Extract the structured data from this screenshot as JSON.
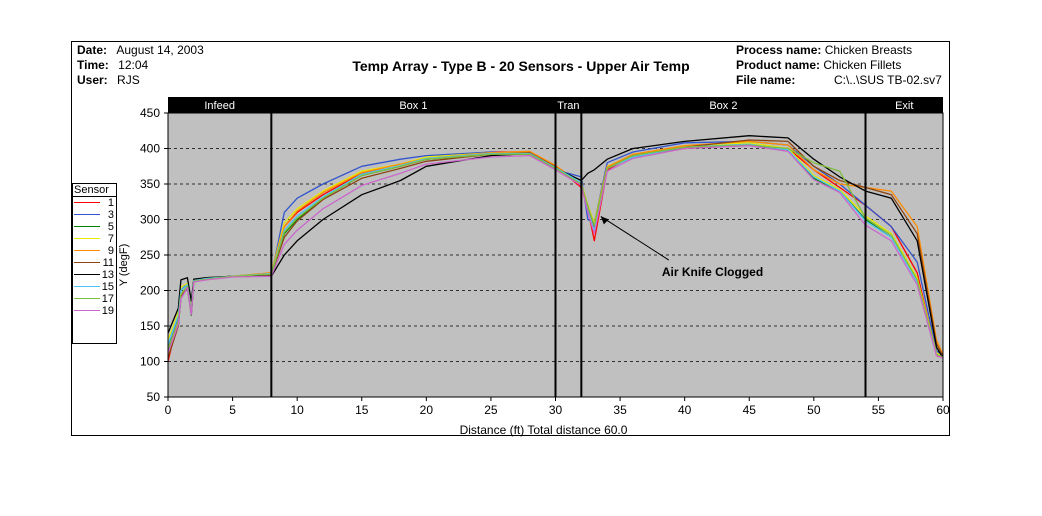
{
  "header": {
    "date_label": "Date:",
    "date_value": "August 14, 2003",
    "time_label": "Time:",
    "time_value": "12:04",
    "user_label": "User:",
    "user_value": "RJS",
    "process_label": "Process name:",
    "process_value": "Chicken Breasts",
    "product_label": "Product name:",
    "product_value": "Chicken Fillets",
    "file_label": "File name:",
    "file_value": "C:\\..\\SUS TB-02.sv7"
  },
  "chart_data": {
    "type": "line",
    "title": "Temp Array - Type B - 20 Sensors - Upper Air Temp",
    "xlabel": "Distance (ft) Total distance 60.0",
    "ylabel": "Y (degF)",
    "xlim": [
      0,
      60
    ],
    "ylim": [
      50,
      450
    ],
    "xticks": [
      0,
      5,
      10,
      15,
      20,
      25,
      30,
      35,
      40,
      45,
      50,
      55,
      60
    ],
    "yticks": [
      50,
      100,
      150,
      200,
      250,
      300,
      350,
      400,
      450
    ],
    "grid": "horizontal-dashed",
    "plot_background": "#c0c0c0",
    "legend_title": "Sensor",
    "legend_placement": "left",
    "zones": [
      {
        "label": "Infeed",
        "start": 0,
        "end": 8
      },
      {
        "label": "Box 1",
        "start": 8,
        "end": 30
      },
      {
        "label": "Tran",
        "start": 30,
        "end": 32
      },
      {
        "label": "Box 2",
        "start": 32,
        "end": 54
      },
      {
        "label": "Exit",
        "start": 54,
        "end": 60
      }
    ],
    "zone_dividers": [
      8,
      30,
      32,
      54
    ],
    "annotation": {
      "text": "Air Knife Clogged",
      "x": 38,
      "y": 226,
      "arrow_to_x": 33.2,
      "arrow_to_y": 310
    },
    "series": [
      {
        "name": "1",
        "color": "#ff0000",
        "x": [
          0,
          0.8,
          1,
          1.5,
          1.8,
          2,
          3,
          5,
          8,
          9,
          10,
          12,
          15,
          18,
          20,
          25,
          28,
          30,
          32,
          32.5,
          33,
          34,
          36,
          40,
          45,
          48,
          50,
          52,
          54,
          56,
          58,
          59.5,
          60
        ],
        "y": [
          100,
          160,
          195,
          205,
          175,
          215,
          218,
          220,
          225,
          290,
          310,
          335,
          365,
          375,
          385,
          395,
          395,
          375,
          345,
          315,
          270,
          370,
          390,
          400,
          405,
          400,
          370,
          345,
          320,
          290,
          225,
          108,
          105
        ]
      },
      {
        "name": "3",
        "color": "#3355cc",
        "x": [
          0,
          0.8,
          1,
          1.5,
          1.8,
          2,
          3,
          5,
          8,
          9,
          10,
          12,
          15,
          18,
          20,
          25,
          28,
          30,
          32,
          32.5,
          33,
          34,
          36,
          40,
          45,
          48,
          50,
          52,
          54,
          56,
          58,
          59.5,
          60
        ],
        "y": [
          120,
          160,
          200,
          210,
          170,
          215,
          218,
          220,
          220,
          310,
          330,
          350,
          375,
          385,
          390,
          395,
          392,
          370,
          360,
          300,
          295,
          380,
          395,
          408,
          410,
          405,
          375,
          350,
          320,
          290,
          240,
          115,
          108
        ]
      },
      {
        "name": "5",
        "color": "#008000",
        "x": [
          0,
          0.8,
          1,
          1.5,
          1.8,
          2,
          3,
          5,
          8,
          9,
          10,
          12,
          15,
          18,
          20,
          25,
          28,
          30,
          32,
          32.5,
          33,
          34,
          36,
          40,
          45,
          48,
          50,
          52,
          54,
          56,
          58,
          59.5,
          60
        ],
        "y": [
          115,
          150,
          190,
          205,
          165,
          212,
          216,
          220,
          222,
          280,
          300,
          330,
          362,
          375,
          385,
          392,
          392,
          372,
          350,
          320,
          290,
          372,
          388,
          402,
          405,
          398,
          358,
          340,
          300,
          275,
          215,
          110,
          106
        ]
      },
      {
        "name": "7",
        "color": "#e8e800",
        "x": [
          0,
          0.8,
          1,
          1.5,
          1.8,
          2,
          3,
          5,
          8,
          9,
          10,
          12,
          15,
          18,
          20,
          25,
          28,
          30,
          32,
          32.5,
          33,
          34,
          36,
          40,
          45,
          48,
          50,
          52,
          54,
          56,
          58,
          59.5,
          60
        ],
        "y": [
          130,
          170,
          205,
          210,
          175,
          215,
          218,
          220,
          225,
          295,
          315,
          340,
          368,
          378,
          388,
          394,
          394,
          374,
          352,
          320,
          295,
          375,
          390,
          404,
          408,
          400,
          362,
          342,
          305,
          280,
          218,
          112,
          107
        ]
      },
      {
        "name": "9",
        "color": "#ff8c00",
        "x": [
          0,
          0.8,
          1,
          1.5,
          1.8,
          2,
          3,
          5,
          8,
          9,
          10,
          12,
          15,
          18,
          20,
          25,
          28,
          30,
          32,
          32.5,
          33,
          34,
          36,
          40,
          45,
          48,
          50,
          52,
          54,
          56,
          58,
          59.5,
          60
        ],
        "y": [
          110,
          155,
          195,
          205,
          170,
          214,
          217,
          220,
          225,
          290,
          312,
          338,
          366,
          378,
          386,
          394,
          396,
          376,
          350,
          318,
          292,
          374,
          392,
          404,
          410,
          405,
          370,
          350,
          345,
          340,
          290,
          130,
          110
        ]
      },
      {
        "name": "11",
        "color": "#8b4513",
        "x": [
          0,
          0.8,
          1,
          1.5,
          1.8,
          2,
          3,
          5,
          8,
          9,
          10,
          12,
          15,
          18,
          20,
          25,
          28,
          30,
          32,
          32.5,
          33,
          34,
          36,
          40,
          45,
          48,
          50,
          52,
          54,
          56,
          58,
          59.5,
          60
        ],
        "y": [
          105,
          150,
          190,
          205,
          168,
          213,
          216,
          220,
          222,
          275,
          298,
          328,
          358,
          372,
          382,
          392,
          394,
          374,
          348,
          318,
          290,
          372,
          390,
          402,
          412,
          410,
          375,
          355,
          345,
          335,
          280,
          125,
          108
        ]
      },
      {
        "name": "13",
        "color": "#000000",
        "x": [
          0,
          0.8,
          1,
          1.5,
          1.8,
          2,
          3,
          5,
          8,
          9,
          10,
          12,
          15,
          18,
          20,
          25,
          28,
          30,
          32,
          32.5,
          33,
          34,
          36,
          40,
          45,
          48,
          50,
          52,
          54,
          56,
          58,
          59.5,
          60
        ],
        "y": [
          140,
          175,
          215,
          218,
          185,
          216,
          218,
          220,
          220,
          250,
          270,
          300,
          335,
          355,
          375,
          390,
          393,
          372,
          355,
          365,
          370,
          385,
          400,
          410,
          418,
          415,
          385,
          360,
          340,
          330,
          270,
          120,
          105
        ]
      },
      {
        "name": "15",
        "color": "#4fc3f7",
        "x": [
          0,
          0.8,
          1,
          1.5,
          1.8,
          2,
          3,
          5,
          8,
          9,
          10,
          12,
          15,
          18,
          20,
          25,
          28,
          30,
          32,
          32.5,
          33,
          34,
          36,
          40,
          45,
          48,
          50,
          52,
          54,
          56,
          58,
          59.5,
          60
        ],
        "y": [
          125,
          165,
          200,
          208,
          172,
          214,
          217,
          220,
          224,
          285,
          305,
          332,
          364,
          376,
          386,
          393,
          393,
          373,
          352,
          312,
          285,
          372,
          388,
          402,
          406,
          398,
          360,
          340,
          298,
          275,
          212,
          110,
          106
        ]
      },
      {
        "name": "17",
        "color": "#7fbf3f",
        "x": [
          0,
          0.8,
          1,
          1.5,
          1.8,
          2,
          3,
          5,
          8,
          9,
          10,
          12,
          15,
          18,
          20,
          25,
          28,
          30,
          32,
          32.5,
          33,
          34,
          36,
          40,
          45,
          48,
          50,
          52,
          54,
          56,
          58,
          59.5,
          60
        ],
        "y": [
          118,
          158,
          195,
          206,
          170,
          213,
          216,
          220,
          223,
          282,
          302,
          330,
          362,
          375,
          385,
          392,
          392,
          372,
          350,
          318,
          292,
          372,
          390,
          402,
          405,
          400,
          380,
          368,
          302,
          278,
          215,
          110,
          106
        ]
      },
      {
        "name": "19",
        "color": "#cc66cc",
        "x": [
          0,
          0.8,
          1,
          1.5,
          1.8,
          2,
          3,
          5,
          8,
          9,
          10,
          12,
          15,
          18,
          20,
          25,
          28,
          30,
          32,
          32.5,
          33,
          34,
          36,
          40,
          45,
          48,
          50,
          52,
          54,
          56,
          58,
          59.5,
          60
        ],
        "y": [
          112,
          152,
          188,
          204,
          166,
          212,
          215,
          219,
          220,
          265,
          285,
          315,
          348,
          365,
          378,
          388,
          390,
          370,
          348,
          310,
          280,
          368,
          386,
          400,
          404,
          396,
          356,
          338,
          292,
          270,
          208,
          108,
          105
        ]
      }
    ]
  }
}
